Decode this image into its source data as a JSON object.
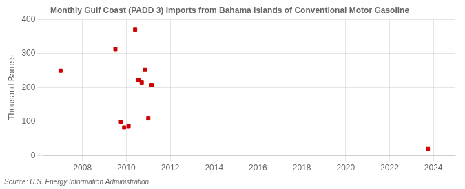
{
  "chart_data": {
    "type": "scatter",
    "title": "Monthly Gulf Coast (PADD 3) Imports from Bahama Islands of Conventional Motor Gasoline",
    "ylabel": "Thousand Barrels",
    "source": "Source: U.S. Energy Information Administration",
    "x": [
      2007.0,
      2009.5,
      2009.75,
      2009.9,
      2010.1,
      2010.4,
      2010.55,
      2010.7,
      2010.85,
      2011.0,
      2011.15,
      2023.75
    ],
    "values": [
      250,
      313,
      100,
      83,
      87,
      370,
      222,
      215,
      252,
      110,
      207,
      20
    ],
    "color": "#cc0000",
    "marker": "square",
    "xlim": [
      2006.2,
      2025.0
    ],
    "xticks": [
      2008,
      2010,
      2012,
      2014,
      2016,
      2018,
      2020,
      2022,
      2024
    ],
    "ylim": [
      0,
      400
    ],
    "yticks": [
      0,
      100,
      200,
      300,
      400
    ],
    "grid": true
  }
}
